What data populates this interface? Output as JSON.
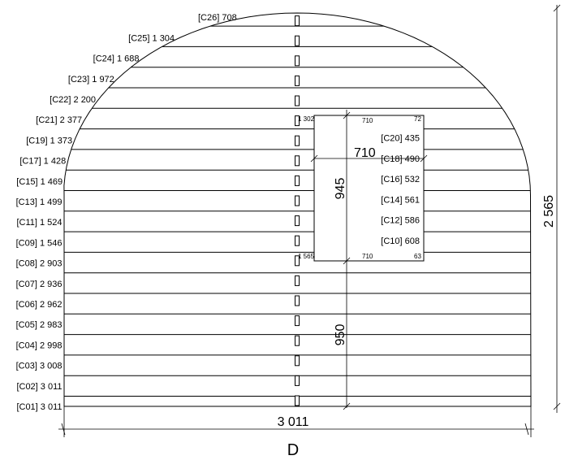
{
  "drawing": {
    "title": "D",
    "overall_width": "3 011",
    "overall_height": "2 565",
    "opening_height": "945",
    "opening_width": "710",
    "sill_height": "950",
    "opening_top_left": "1 302",
    "opening_top_width": "710",
    "opening_top_right": "72",
    "opening_bottom_left": "1 565",
    "opening_bottom_width": "710",
    "opening_bottom_right": "63"
  },
  "courses_left": [
    "[C01] 3 011",
    "[C02] 3 011",
    "[C03] 3 008",
    "[C04] 2 998",
    "[C05] 2 983",
    "[C06] 2 962",
    "[C07] 2 936",
    "[C08] 2 903",
    "[C09] 1 546",
    "[C11] 1 524",
    "[C13] 1 499",
    "[C15] 1 469",
    "[C17] 1 428",
    "[C19] 1 373",
    "[C21] 2 377",
    "[C22] 2 200",
    "[C23] 1 972",
    "[C24] 1 688",
    "[C25] 1 304",
    "[C26] 708"
  ],
  "courses_right": [
    "[C10] 608",
    "[C12] 586",
    "[C14] 561",
    "[C16] 532",
    "[C18] 490",
    "[C20] 435"
  ]
}
